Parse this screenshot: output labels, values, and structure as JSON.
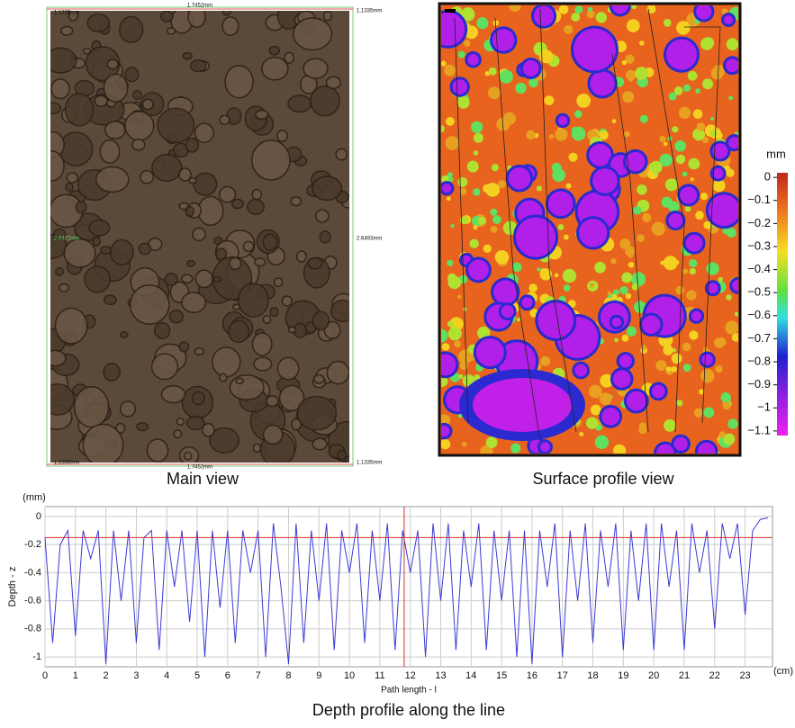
{
  "main_view": {
    "caption": "Main view",
    "labels": {
      "top_left": "1.1335mm",
      "top_center": "1.7452mm",
      "top_right": "1.1335mm",
      "left_middle": "2.6472mm",
      "right_middle": "2.6493mm",
      "bottom_left": "1.1335mm",
      "bottom_center": "1.7452mm",
      "bottom_right": "1.1335mm"
    }
  },
  "surface_view": {
    "caption": "Surface profile view",
    "colorbar_unit": "mm",
    "colorbar_lim": [
      0.02,
      -1.12
    ],
    "colorbar_ticks": [
      0,
      {
        "value": -0.1,
        "label": "−0.1"
      },
      {
        "value": -0.2,
        "label": "−0.2"
      },
      {
        "value": -0.3,
        "label": "−0.3"
      },
      {
        "value": -0.4,
        "label": "−0.4"
      },
      {
        "value": -0.5,
        "label": "−0.5"
      },
      {
        "value": -0.6,
        "label": "−0.6"
      },
      {
        "value": -0.7,
        "label": "−0.7"
      },
      {
        "value": -0.8,
        "label": "−0.8"
      },
      {
        "value": -0.9,
        "label": "−0.9"
      },
      {
        "value": -1,
        "label": "−1"
      },
      {
        "value": -1.1,
        "label": "−1.1"
      }
    ]
  },
  "chart_data": {
    "type": "line",
    "caption": "Depth profile along the line",
    "y_label": "Depth - z",
    "y_unit": "(mm)",
    "x_label": "Path length - l",
    "x_unit": "(cm)",
    "color": "#3b3bd6",
    "grid": true,
    "reference_y": -0.15,
    "reference_x": 11.8,
    "reference_color": "#d0302a",
    "xlim": [
      0,
      23.9
    ],
    "ylim": [
      -1.07,
      0.07
    ],
    "xticks": [
      0,
      1,
      2,
      3,
      4,
      5,
      6,
      7,
      8,
      9,
      10,
      11,
      12,
      13,
      14,
      15,
      16,
      17,
      18,
      19,
      20,
      21,
      22,
      23
    ],
    "yticks": [
      0,
      -0.2,
      -0.4,
      -0.6,
      -0.8,
      -1
    ],
    "x": [
      0,
      0.25,
      0.5,
      0.75,
      1,
      1.25,
      1.5,
      1.75,
      2,
      2.25,
      2.5,
      2.75,
      3,
      3.25,
      3.5,
      3.75,
      4,
      4.25,
      4.5,
      4.75,
      5,
      5.25,
      5.5,
      5.75,
      6,
      6.25,
      6.5,
      6.75,
      7,
      7.25,
      7.5,
      7.75,
      8,
      8.25,
      8.5,
      8.75,
      9,
      9.25,
      9.5,
      9.75,
      10,
      10.25,
      10.5,
      10.75,
      11,
      11.25,
      11.5,
      11.75,
      12,
      12.25,
      12.5,
      12.75,
      13,
      13.25,
      13.5,
      13.75,
      14,
      14.25,
      14.5,
      14.75,
      15,
      15.25,
      15.5,
      15.75,
      16,
      16.25,
      16.5,
      16.75,
      17,
      17.25,
      17.5,
      17.75,
      18,
      18.25,
      18.5,
      18.75,
      19,
      19.25,
      19.5,
      19.75,
      20,
      20.25,
      20.5,
      20.75,
      21,
      21.25,
      21.5,
      21.75,
      22,
      22.25,
      22.5,
      22.75,
      23,
      23.25,
      23.5,
      23.75
    ],
    "values": [
      -0.15,
      -0.9,
      -0.2,
      -0.1,
      -0.85,
      -0.1,
      -0.3,
      -0.1,
      -1.05,
      -0.1,
      -0.6,
      -0.1,
      -0.9,
      -0.15,
      -0.1,
      -0.95,
      -0.1,
      -0.5,
      -0.1,
      -0.75,
      -0.1,
      -1.0,
      -0.1,
      -0.65,
      -0.1,
      -0.9,
      -0.1,
      -0.4,
      -0.1,
      -1.0,
      -0.05,
      -0.5,
      -1.05,
      -0.05,
      -0.9,
      -0.1,
      -0.6,
      -0.05,
      -0.95,
      -0.1,
      -0.4,
      -0.05,
      -0.9,
      -0.1,
      -0.6,
      -0.05,
      -0.95,
      -0.1,
      -0.4,
      -0.1,
      -1.0,
      -0.05,
      -0.6,
      -0.05,
      -0.95,
      -0.1,
      -0.5,
      -0.05,
      -0.95,
      -0.1,
      -0.6,
      -0.1,
      -1.0,
      -0.1,
      -1.05,
      -0.1,
      -0.5,
      -0.05,
      -1.0,
      -0.1,
      -0.6,
      -0.05,
      -0.9,
      -0.1,
      -0.5,
      -0.05,
      -0.95,
      -0.1,
      -0.6,
      -0.05,
      -0.95,
      -0.05,
      -0.5,
      -0.1,
      -0.95,
      -0.05,
      -0.4,
      -0.1,
      -0.8,
      -0.05,
      -0.3,
      -0.05,
      -0.7,
      -0.1,
      -0.02,
      -0.01
    ]
  }
}
